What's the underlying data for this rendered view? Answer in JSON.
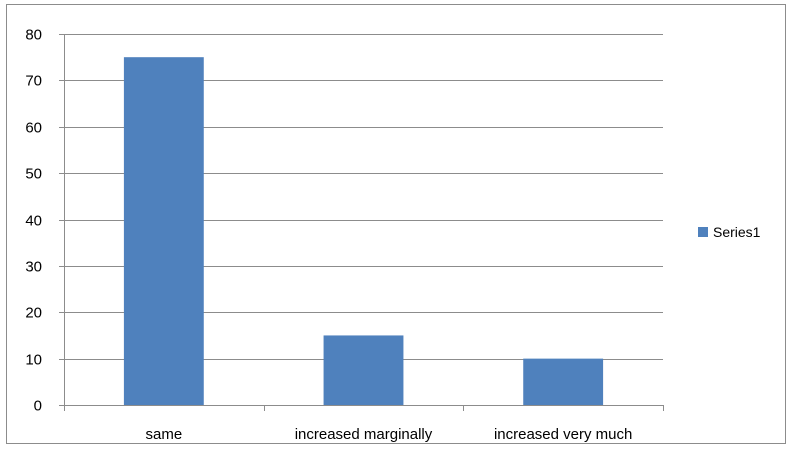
{
  "chart_data": {
    "type": "bar",
    "categories": [
      "same",
      "increased marginally",
      "increased  very much"
    ],
    "series": [
      {
        "name": "Series1",
        "values": [
          75,
          15,
          10
        ]
      }
    ],
    "title": "",
    "xlabel": "",
    "ylabel": "",
    "ylim": [
      0,
      80
    ],
    "yticks": [
      0,
      10,
      20,
      30,
      40,
      50,
      60,
      70,
      80
    ],
    "grid": true,
    "legend": "right",
    "colors": {
      "bar": "#4f81bd",
      "grid": "#8c8c8c",
      "axis": "#8c8c8c"
    }
  }
}
